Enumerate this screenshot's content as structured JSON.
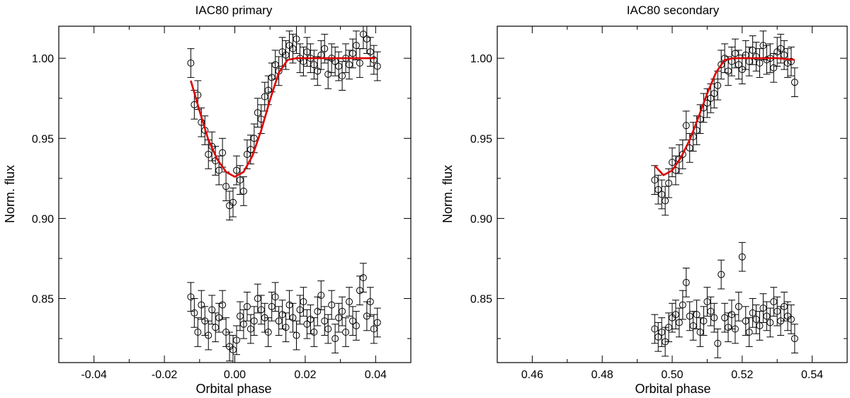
{
  "chart_data": [
    {
      "type": "scatter",
      "title": "IAC80 primary",
      "xlabel": "Orbital phase",
      "ylabel": "Norm. flux",
      "xlim": [
        -0.05,
        0.05
      ],
      "ylim": [
        0.81,
        1.02
      ],
      "xticks": [
        -0.04,
        -0.02,
        0.0,
        0.02,
        0.04
      ],
      "xtick_labels": [
        "-0.04",
        "-0.02",
        "0.00",
        "0.02",
        "0.04"
      ],
      "yticks": [
        0.85,
        0.9,
        0.95,
        1.0
      ],
      "ytick_labels": [
        "0.85",
        "0.90",
        "0.95",
        "1.00"
      ],
      "grid": false,
      "model_color": "#dd0000",
      "series": [
        {
          "kind": "observed light curve with error bars",
          "marker": "open-circle",
          "x": [
            -0.0125,
            -0.0115,
            -0.0105,
            -0.0095,
            -0.0085,
            -0.0075,
            -0.0065,
            -0.0055,
            -0.0045,
            -0.0035,
            -0.0025,
            -0.0015,
            -0.0005,
            0.0005,
            0.0015,
            0.0025,
            0.0035,
            0.0045,
            0.0055,
            0.0065,
            0.0075,
            0.0085,
            0.0095,
            0.0105,
            0.0115,
            0.0125,
            0.0135,
            0.0145,
            0.0155,
            0.0165,
            0.0175,
            0.0185,
            0.0195,
            0.0205,
            0.0215,
            0.0225,
            0.0235,
            0.0245,
            0.0255,
            0.0265,
            0.0275,
            0.0285,
            0.0295,
            0.0305,
            0.0315,
            0.0325,
            0.0335,
            0.0345,
            0.0355,
            0.0365,
            0.0375,
            0.0385,
            0.0395,
            0.0405
          ],
          "y": [
            0.997,
            0.971,
            0.977,
            0.96,
            0.955,
            0.94,
            0.945,
            0.936,
            0.93,
            0.941,
            0.92,
            0.908,
            0.91,
            0.93,
            0.924,
            0.917,
            0.94,
            0.943,
            0.95,
            0.966,
            0.962,
            0.976,
            0.98,
            0.988,
            0.996,
            0.992,
            1.004,
            1.002,
            1.008,
            1.006,
            1.012,
            1.0,
            0.998,
            1.004,
            1.0,
            0.996,
            0.992,
            1.002,
            1.006,
            0.99,
            1.0,
            0.998,
            0.995,
            0.989,
            1.0,
            0.996,
            1.003,
            1.008,
            0.997,
            1.015,
            1.012,
            1.004,
            0.999,
            0.995
          ],
          "yerr": 0.009
        },
        {
          "kind": "model",
          "line": "solid",
          "x": [
            -0.0125,
            -0.01,
            -0.0075,
            -0.005,
            -0.0025,
            0.0,
            0.0025,
            0.005,
            0.0075,
            0.01,
            0.0125,
            0.015,
            0.0175,
            0.02,
            0.025,
            0.03,
            0.035,
            0.04
          ],
          "y": [
            0.986,
            0.967,
            0.949,
            0.937,
            0.929,
            0.926,
            0.929,
            0.939,
            0.955,
            0.974,
            0.991,
            0.999,
            1.0,
            1.0,
            1.0,
            1.0,
            1.0,
            1.0
          ]
        },
        {
          "kind": "residuals (offset)",
          "marker": "open-circle",
          "x": [
            -0.0125,
            -0.0115,
            -0.0105,
            -0.0095,
            -0.0085,
            -0.0075,
            -0.0065,
            -0.0055,
            -0.0045,
            -0.0035,
            -0.0025,
            -0.0015,
            -0.0005,
            0.0005,
            0.0015,
            0.0025,
            0.0035,
            0.0045,
            0.0055,
            0.0065,
            0.0075,
            0.0085,
            0.0095,
            0.0105,
            0.0115,
            0.0125,
            0.0135,
            0.0145,
            0.0155,
            0.0165,
            0.0175,
            0.0185,
            0.0195,
            0.0205,
            0.0215,
            0.0225,
            0.0235,
            0.0245,
            0.0255,
            0.0265,
            0.0275,
            0.0285,
            0.0295,
            0.0305,
            0.0315,
            0.0325,
            0.0335,
            0.0345,
            0.0355,
            0.0365,
            0.0375,
            0.0385,
            0.0395,
            0.0405
          ],
          "y": [
            0.851,
            0.841,
            0.829,
            0.846,
            0.836,
            0.827,
            0.843,
            0.832,
            0.838,
            0.846,
            0.829,
            0.82,
            0.818,
            0.824,
            0.839,
            0.834,
            0.845,
            0.831,
            0.836,
            0.85,
            0.843,
            0.838,
            0.829,
            0.845,
            0.851,
            0.836,
            0.84,
            0.832,
            0.846,
            0.838,
            0.827,
            0.843,
            0.848,
            0.834,
            0.837,
            0.829,
            0.842,
            0.852,
            0.836,
            0.831,
            0.846,
            0.825,
            0.838,
            0.842,
            0.829,
            0.848,
            0.836,
            0.833,
            0.855,
            0.863,
            0.839,
            0.848,
            0.831,
            0.835
          ],
          "yerr": 0.009
        }
      ]
    },
    {
      "type": "scatter",
      "title": "IAC80 secondary",
      "xlabel": "Orbital phase",
      "ylabel": "Norm. flux",
      "xlim": [
        0.45,
        0.55
      ],
      "ylim": [
        0.81,
        1.02
      ],
      "xticks": [
        0.46,
        0.48,
        0.5,
        0.52,
        0.54
      ],
      "xtick_labels": [
        "0.46",
        "0.48",
        "0.50",
        "0.52",
        "0.54"
      ],
      "yticks": [
        0.85,
        0.9,
        0.95,
        1.0
      ],
      "ytick_labels": [
        "0.85",
        "0.90",
        "0.95",
        "1.00"
      ],
      "grid": false,
      "model_color": "#dd0000",
      "series": [
        {
          "kind": "observed light curve with error bars",
          "marker": "open-circle",
          "x": [
            0.495,
            0.496,
            0.497,
            0.498,
            0.499,
            0.5,
            0.501,
            0.502,
            0.503,
            0.504,
            0.505,
            0.506,
            0.507,
            0.508,
            0.509,
            0.51,
            0.511,
            0.512,
            0.513,
            0.514,
            0.515,
            0.516,
            0.517,
            0.518,
            0.519,
            0.52,
            0.521,
            0.522,
            0.523,
            0.524,
            0.525,
            0.526,
            0.527,
            0.528,
            0.529,
            0.53,
            0.531,
            0.532,
            0.533,
            0.534,
            0.535
          ],
          "y": [
            0.924,
            0.918,
            0.915,
            0.911,
            0.922,
            0.935,
            0.93,
            0.937,
            0.94,
            0.958,
            0.944,
            0.951,
            0.955,
            0.962,
            0.969,
            0.972,
            0.975,
            0.978,
            0.983,
            0.996,
            1.0,
            0.992,
            0.998,
            1.003,
            0.996,
            0.993,
            1.002,
            0.998,
            1.005,
            1.001,
            0.997,
            1.008,
            0.999,
            1.0,
            0.994,
            1.004,
            1.006,
            1.002,
            0.997,
            0.998,
            0.985
          ],
          "yerr": 0.009
        },
        {
          "kind": "model",
          "line": "solid",
          "x": [
            0.495,
            0.4975,
            0.5,
            0.5025,
            0.505,
            0.5075,
            0.51,
            0.5125,
            0.515,
            0.5175,
            0.52,
            0.525,
            0.53,
            0.535
          ],
          "y": [
            0.933,
            0.927,
            0.93,
            0.938,
            0.949,
            0.963,
            0.978,
            0.991,
            0.999,
            1.0,
            1.0,
            1.0,
            1.0,
            0.999
          ]
        },
        {
          "kind": "residuals (offset)",
          "marker": "open-circle",
          "x": [
            0.495,
            0.496,
            0.497,
            0.498,
            0.499,
            0.5,
            0.501,
            0.502,
            0.503,
            0.504,
            0.505,
            0.506,
            0.507,
            0.508,
            0.509,
            0.51,
            0.511,
            0.512,
            0.513,
            0.514,
            0.515,
            0.516,
            0.517,
            0.518,
            0.519,
            0.52,
            0.521,
            0.522,
            0.523,
            0.524,
            0.525,
            0.526,
            0.527,
            0.528,
            0.529,
            0.53,
            0.531,
            0.532,
            0.533,
            0.534,
            0.535
          ],
          "y": [
            0.831,
            0.826,
            0.829,
            0.823,
            0.832,
            0.838,
            0.84,
            0.835,
            0.846,
            0.86,
            0.839,
            0.833,
            0.84,
            0.829,
            0.836,
            0.848,
            0.842,
            0.838,
            0.822,
            0.865,
            0.838,
            0.832,
            0.84,
            0.831,
            0.845,
            0.876,
            0.836,
            0.829,
            0.841,
            0.837,
            0.833,
            0.844,
            0.839,
            0.835,
            0.848,
            0.842,
            0.836,
            0.845,
            0.839,
            0.837,
            0.825
          ],
          "yerr": 0.009
        }
      ]
    }
  ]
}
